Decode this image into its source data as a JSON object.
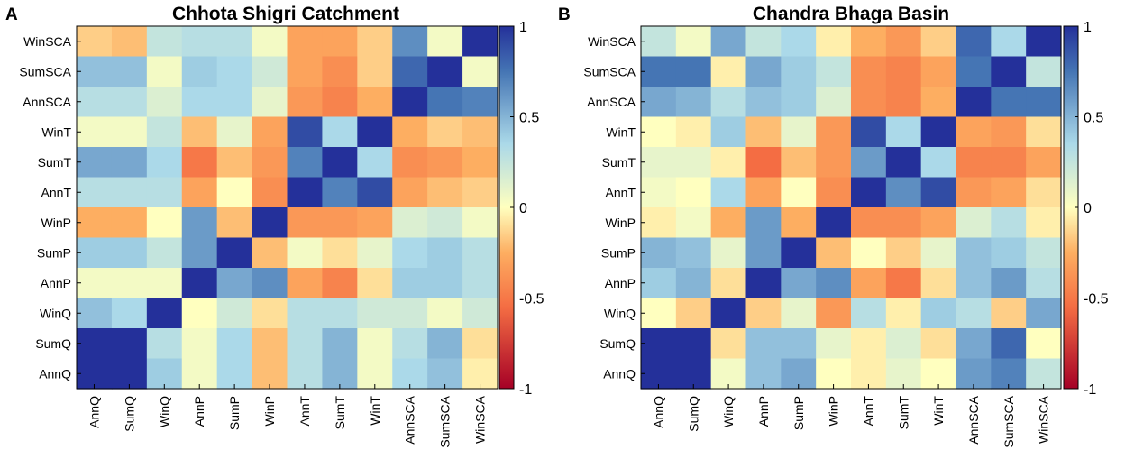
{
  "chart_data": [
    {
      "type": "heatmap",
      "panel_label": "A",
      "title": "Chhota Shigri Catchment",
      "row_labels": [
        "WinSCA",
        "SumSCA",
        "AnnSCA",
        "WinT",
        "SumT",
        "AnnT",
        "WinP",
        "SumP",
        "AnnP",
        "WinQ",
        "SumQ",
        "AnnQ"
      ],
      "col_labels": [
        "AnnQ",
        "SumQ",
        "WinQ",
        "AnnP",
        "SumP",
        "WinP",
        "AnnT",
        "SumT",
        "WinT",
        "AnnSCA",
        "SumSCA",
        "WinSCA"
      ],
      "values": [
        [
          -0.15,
          -0.2,
          0.25,
          0.3,
          0.3,
          0.05,
          -0.3,
          -0.3,
          -0.15,
          0.65,
          0.05,
          1.0
        ],
        [
          0.45,
          0.45,
          0.05,
          0.4,
          0.35,
          0.2,
          -0.3,
          -0.4,
          -0.15,
          0.8,
          1.0,
          0.05
        ],
        [
          0.3,
          0.3,
          0.15,
          0.35,
          0.35,
          0.1,
          -0.35,
          -0.45,
          -0.25,
          1.0,
          0.75,
          0.7
        ],
        [
          0.05,
          0.05,
          0.25,
          -0.2,
          0.1,
          -0.3,
          0.9,
          0.35,
          1.0,
          -0.25,
          -0.15,
          -0.2
        ],
        [
          0.55,
          0.55,
          0.35,
          -0.5,
          -0.2,
          -0.35,
          0.7,
          1.0,
          0.35,
          -0.4,
          -0.35,
          -0.25
        ],
        [
          0.3,
          0.3,
          0.3,
          -0.3,
          0.0,
          -0.4,
          1.0,
          0.7,
          0.9,
          -0.3,
          -0.2,
          -0.15
        ],
        [
          -0.25,
          -0.25,
          0.0,
          0.6,
          -0.2,
          1.0,
          -0.35,
          -0.35,
          -0.3,
          0.15,
          0.2,
          0.05
        ],
        [
          0.4,
          0.4,
          0.25,
          0.6,
          1.0,
          -0.2,
          0.05,
          -0.1,
          0.1,
          0.35,
          0.4,
          0.3
        ],
        [
          0.05,
          0.05,
          0.05,
          1.0,
          0.55,
          0.65,
          -0.3,
          -0.45,
          -0.1,
          0.4,
          0.4,
          0.3
        ],
        [
          0.45,
          0.35,
          1.0,
          0.0,
          0.2,
          -0.1,
          0.3,
          0.3,
          0.2,
          0.2,
          0.05,
          0.2
        ],
        [
          1.0,
          1.0,
          0.3,
          0.05,
          0.35,
          -0.2,
          0.3,
          0.5,
          0.05,
          0.3,
          0.5,
          -0.1
        ],
        [
          1.0,
          1.0,
          0.4,
          0.05,
          0.35,
          -0.2,
          0.3,
          0.5,
          0.05,
          0.35,
          0.45,
          -0.05
        ]
      ],
      "colorbar": {
        "range": [
          -1,
          1
        ],
        "ticks": [
          1,
          0.5,
          0,
          -0.5,
          -1
        ],
        "tick_labels": [
          "1",
          "0.5",
          "0",
          "-0.5",
          "-1"
        ]
      },
      "colors": {
        "neg_end": "#a50026",
        "neg_mid": "#f46d43",
        "neg_light": "#fdae61",
        "neutral": "#ffffbf",
        "pos_light": "#abd9e9",
        "pos_mid": "#4575b4",
        "pos_end": "#24309a"
      }
    },
    {
      "type": "heatmap",
      "panel_label": "B",
      "title": "Chandra Bhaga Basin",
      "row_labels": [
        "WinSCA",
        "SumSCA",
        "AnnSCA",
        "WinT",
        "SumT",
        "AnnT",
        "WinP",
        "SumP",
        "AnnP",
        "WinQ",
        "SumQ",
        "AnnQ"
      ],
      "col_labels": [
        "AnnQ",
        "SumQ",
        "WinQ",
        "AnnP",
        "SumP",
        "WinP",
        "AnnT",
        "SumT",
        "WinT",
        "AnnSCA",
        "SumSCA",
        "WinSCA"
      ],
      "values": [
        [
          0.25,
          0.05,
          0.55,
          0.25,
          0.35,
          -0.05,
          -0.25,
          -0.35,
          -0.15,
          0.8,
          0.35,
          1.0
        ],
        [
          0.75,
          0.75,
          -0.05,
          0.55,
          0.4,
          0.25,
          -0.4,
          -0.45,
          -0.3,
          0.75,
          1.0,
          0.25
        ],
        [
          0.55,
          0.5,
          0.3,
          0.45,
          0.4,
          0.15,
          -0.4,
          -0.45,
          -0.25,
          1.0,
          0.75,
          0.75
        ],
        [
          0.0,
          -0.05,
          0.4,
          -0.2,
          0.1,
          -0.35,
          0.9,
          0.35,
          1.0,
          -0.3,
          -0.35,
          -0.1
        ],
        [
          0.1,
          0.1,
          -0.05,
          -0.55,
          -0.2,
          -0.35,
          0.6,
          1.0,
          0.35,
          -0.45,
          -0.45,
          -0.3
        ],
        [
          0.05,
          0.0,
          0.35,
          -0.3,
          0.0,
          -0.4,
          1.0,
          0.65,
          0.9,
          -0.35,
          -0.3,
          -0.1
        ],
        [
          -0.05,
          0.05,
          -0.25,
          0.6,
          -0.25,
          1.0,
          -0.4,
          -0.4,
          -0.3,
          0.15,
          0.3,
          -0.05
        ],
        [
          0.5,
          0.45,
          0.1,
          0.6,
          1.0,
          -0.2,
          0.0,
          -0.15,
          0.1,
          0.45,
          0.4,
          0.25
        ],
        [
          0.4,
          0.5,
          -0.1,
          1.0,
          0.55,
          0.65,
          -0.3,
          -0.5,
          -0.1,
          0.45,
          0.6,
          0.3
        ],
        [
          0.0,
          -0.15,
          1.0,
          -0.15,
          0.1,
          -0.35,
          0.3,
          -0.05,
          0.4,
          0.3,
          -0.15,
          0.55
        ],
        [
          1.0,
          1.0,
          -0.1,
          0.45,
          0.45,
          0.1,
          -0.05,
          0.15,
          -0.1,
          0.55,
          0.8,
          0.0
        ],
        [
          1.0,
          1.0,
          0.05,
          0.45,
          0.55,
          0.0,
          -0.05,
          0.1,
          0.0,
          0.6,
          0.7,
          0.25
        ]
      ],
      "colorbar": {
        "range": [
          -1,
          1
        ],
        "ticks": [
          1,
          0.5,
          0,
          -0.5,
          -1
        ],
        "tick_labels": [
          "1",
          "0.5",
          "0",
          "-0.5",
          "-1"
        ]
      },
      "colors": {
        "neg_end": "#a50026",
        "neg_mid": "#f46d43",
        "neg_light": "#fdae61",
        "neutral": "#ffffbf",
        "pos_light": "#abd9e9",
        "pos_mid": "#4575b4",
        "pos_end": "#24309a"
      }
    }
  ]
}
